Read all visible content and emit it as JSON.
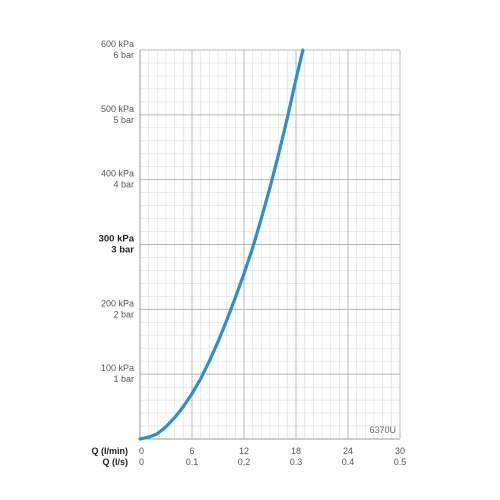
{
  "chart_data": {
    "type": "line",
    "title": "",
    "code": "6370U",
    "x_axes": [
      {
        "label": "Q (l/min)",
        "ticks": [
          "0",
          "6",
          "12",
          "18",
          "24",
          "30"
        ],
        "range": [
          0,
          30
        ]
      },
      {
        "label": "Q (l/s)",
        "ticks": [
          "0",
          "0.1",
          "0.2",
          "0.3",
          "0.4",
          "0.5"
        ],
        "range": [
          0,
          0.5
        ]
      }
    ],
    "y_axis": {
      "range": [
        0,
        600
      ],
      "unit": "kPa",
      "ticks": [
        {
          "value": 100,
          "kpa": "100 kPa",
          "bar": "1 bar",
          "bold": false
        },
        {
          "value": 200,
          "kpa": "200 kPa",
          "bar": "2 bar",
          "bold": false
        },
        {
          "value": 300,
          "kpa": "300 kPa",
          "bar": "3 bar",
          "bold": true
        },
        {
          "value": 400,
          "kpa": "400 kPa",
          "bar": "4 bar",
          "bold": false
        },
        {
          "value": 500,
          "kpa": "500 kPa",
          "bar": "5 bar",
          "bold": false
        },
        {
          "value": 600,
          "kpa": "600 kPa",
          "bar": "6 bar",
          "bold": false
        }
      ]
    },
    "grid": true,
    "series": [
      {
        "color": "#2a8fd4",
        "x": [
          0,
          1,
          2,
          3,
          4,
          5,
          6,
          7,
          8,
          9,
          10,
          11,
          12,
          13,
          14,
          15,
          16,
          17,
          18,
          18.8
        ],
        "y": [
          0,
          3,
          8,
          19,
          33,
          50,
          70,
          93,
          120,
          150,
          183,
          218,
          255,
          295,
          340,
          388,
          440,
          495,
          555,
          600
        ]
      }
    ]
  }
}
